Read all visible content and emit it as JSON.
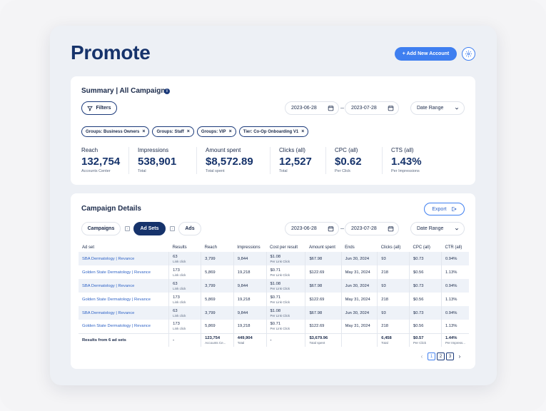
{
  "header": {
    "title": "Promote",
    "add_account_label": "+ Add New Account",
    "settings_icon": "gear-icon"
  },
  "summary": {
    "title": "Summary | All Campaigns",
    "info_icon": "info-icon",
    "filters_label": "Filters",
    "start_date": "2023-06-28",
    "end_date": "2023-07-28",
    "date_range_label": "Date Range",
    "chips": [
      "Groups: Business Owners",
      "Groups: Staff",
      "Groups: VIP",
      "Tier: Co-Op Onboarding V1"
    ],
    "metrics": [
      {
        "label": "Reach",
        "value": "132,754",
        "sub": "Accounts Center"
      },
      {
        "label": "Impressions",
        "value": "538,901",
        "sub": "Total"
      },
      {
        "label": "Amount spent",
        "value": "$8,572.89",
        "sub": "Total spent"
      },
      {
        "label": "Clicks (all)",
        "value": "12,527",
        "sub": "Total"
      },
      {
        "label": "CPC (all)",
        "value": "$0.62",
        "sub": "Per Click"
      },
      {
        "label": "CTS (all)",
        "value": "1.43%",
        "sub": "Per Impressions"
      }
    ]
  },
  "details": {
    "title": "Campaign Details",
    "export_label": "Export",
    "tabs": [
      "Campaigns",
      "Ad Sets",
      "Ads"
    ],
    "active_tab": "Ad Sets",
    "start_date": "2023-06-28",
    "end_date": "2023-07-28",
    "date_range_label": "Date Range",
    "columns": [
      "Ad set",
      "Results",
      "Reach",
      "Impressions",
      "Cost per result",
      "Amount spent",
      "Ends",
      "Clicks (all)",
      "CPC (all)",
      "CTR (all)"
    ],
    "rows": [
      {
        "name": "SBA Dermatology | Revance",
        "results": "63",
        "results_sub": "Link click",
        "reach": "3,799",
        "impressions": "9,844",
        "cost": "$1.08",
        "cost_sub": "Per Link Click",
        "spent": "$67.98",
        "ends": "Jun 30, 2024",
        "clicks": "93",
        "cpc": "$0.73",
        "ctr": "0.94%"
      },
      {
        "name": "Golden State Dermatology | Revance",
        "results": "173",
        "results_sub": "Link click",
        "reach": "5,869",
        "impressions": "19,218",
        "cost": "$0.71",
        "cost_sub": "Per Link Click",
        "spent": "$122.69",
        "ends": "May 31, 2024",
        "clicks": "218",
        "cpc": "$0.56",
        "ctr": "1.13%"
      },
      {
        "name": "SBA Dermatology | Revance",
        "results": "63",
        "results_sub": "Link click",
        "reach": "3,799",
        "impressions": "9,844",
        "cost": "$1.08",
        "cost_sub": "Per Link Click",
        "spent": "$67.98",
        "ends": "Jun 30, 2024",
        "clicks": "93",
        "cpc": "$0.73",
        "ctr": "0.94%"
      },
      {
        "name": "Golden State Dermatology | Revance",
        "results": "173",
        "results_sub": "Link click",
        "reach": "5,869",
        "impressions": "19,218",
        "cost": "$0.71",
        "cost_sub": "Per Link Click",
        "spent": "$122.69",
        "ends": "May 31, 2024",
        "clicks": "218",
        "cpc": "$0.56",
        "ctr": "1.13%"
      },
      {
        "name": "SBA Dermatology | Revance",
        "results": "63",
        "results_sub": "Link click",
        "reach": "3,799",
        "impressions": "9,844",
        "cost": "$1.08",
        "cost_sub": "Per Link Click",
        "spent": "$67.98",
        "ends": "Jun 30, 2024",
        "clicks": "93",
        "cpc": "$0.73",
        "ctr": "0.94%"
      },
      {
        "name": "Golden State Dermatology | Revance",
        "results": "173",
        "results_sub": "Link click",
        "reach": "5,869",
        "impressions": "19,218",
        "cost": "$0.71",
        "cost_sub": "Per Link Click",
        "spent": "$122.69",
        "ends": "May 31, 2024",
        "clicks": "218",
        "cpc": "$0.56",
        "ctr": "1.13%"
      }
    ],
    "totals": {
      "label": "Results from 6 ad sets",
      "results": "-",
      "reach": "123,754",
      "reach_sub": "Accounts Ce...",
      "impressions": "449,904",
      "impressions_sub": "Total",
      "cost": "-",
      "spent": "$3,679.96",
      "spent_sub": "Total spent",
      "ends": "",
      "clicks": "6,458",
      "clicks_sub": "Total",
      "cpc": "$0.57",
      "cpc_sub": "Per Click",
      "ctr": "1.44%",
      "ctr_sub": "Per Impress..."
    },
    "pagination": {
      "pages": [
        "1",
        "2",
        "3"
      ],
      "current": "1",
      "prev_icon": "chevron-left-icon",
      "next_icon": "chevron-right-icon"
    }
  },
  "colors": {
    "accent": "#3f7ff0",
    "navy": "#16336b",
    "link": "#2f63c6"
  }
}
